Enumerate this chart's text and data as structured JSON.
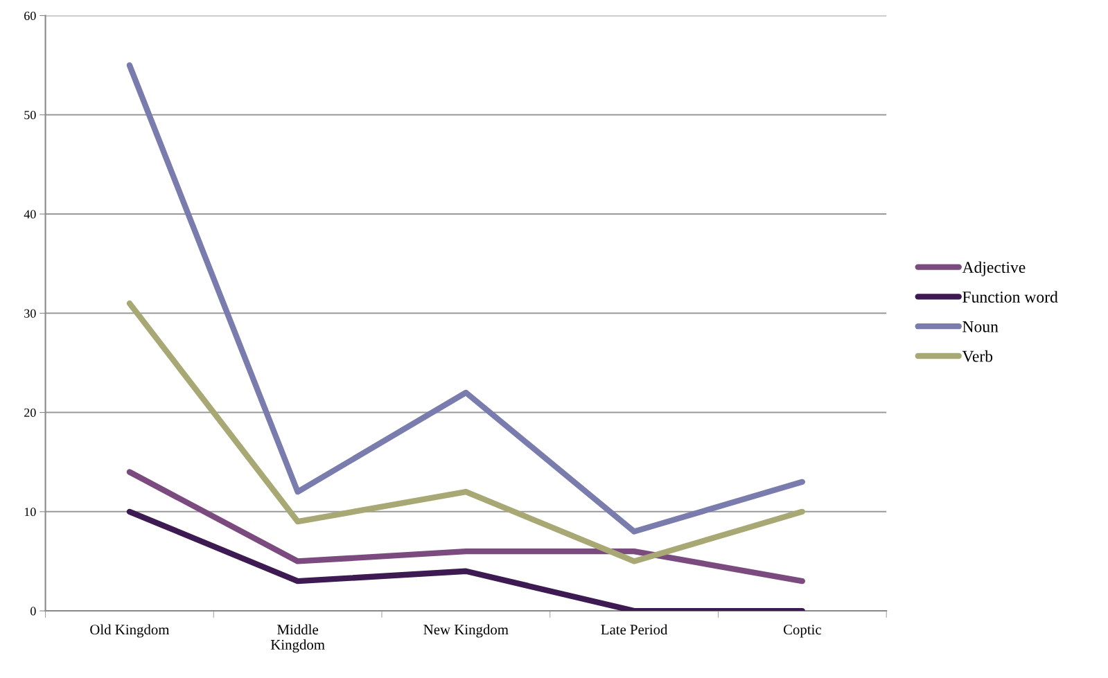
{
  "chart_data": {
    "type": "line",
    "categories": [
      "Old Kingdom",
      "Middle\nKingdom",
      "New Kingdom",
      "Late Period",
      "Coptic"
    ],
    "series": [
      {
        "name": "Adjective",
        "color": "#7b4a7e",
        "values": [
          14,
          5,
          6,
          6,
          3
        ]
      },
      {
        "name": "Function word",
        "color": "#3d1a52",
        "values": [
          10,
          3,
          4,
          0,
          0
        ]
      },
      {
        "name": "Noun",
        "color": "#7a7cae",
        "values": [
          55,
          12,
          22,
          8,
          13
        ]
      },
      {
        "name": "Verb",
        "color": "#a8a874",
        "values": [
          31,
          9,
          12,
          5,
          10
        ]
      }
    ],
    "ylim": [
      0,
      60
    ],
    "yticks": [
      0,
      10,
      20,
      30,
      40,
      50,
      60
    ],
    "grid": "y",
    "legend": "right",
    "marker": "none",
    "line_style": "solid"
  }
}
